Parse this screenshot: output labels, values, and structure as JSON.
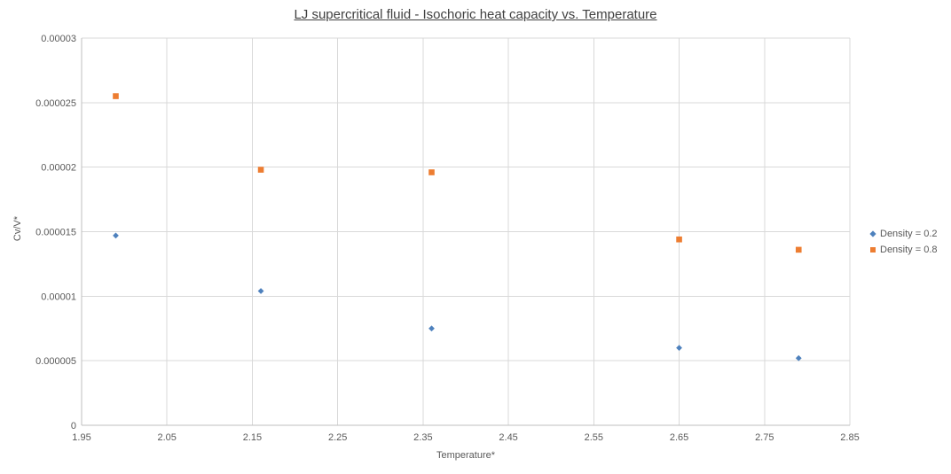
{
  "colors": {
    "gridline": "#d9d9d9",
    "axis_line": "#bfbfbf",
    "axis_text": "#595959",
    "title_text": "#404040"
  },
  "chart_data": {
    "type": "scatter",
    "title": "LJ supercritical fluid - Isochoric heat capacity vs. Temperature",
    "xlabel": "Temperature*",
    "ylabel": "Cv/V*",
    "xlim": [
      1.95,
      2.85
    ],
    "ylim": [
      0,
      3e-05
    ],
    "grid": true,
    "legend_position": "right",
    "x_ticks": [
      1.95,
      2.05,
      2.15,
      2.25,
      2.35,
      2.45,
      2.55,
      2.65,
      2.75,
      2.85
    ],
    "x_tick_labels": [
      "1.95",
      "2.05",
      "2.15",
      "2.25",
      "2.35",
      "2.45",
      "2.55",
      "2.65",
      "2.75",
      "2.85"
    ],
    "y_ticks": [
      0,
      5e-06,
      1e-05,
      1.5e-05,
      2e-05,
      2.5e-05,
      3e-05
    ],
    "y_tick_labels": [
      "0",
      "0.000005",
      "0.00001",
      "0.000015",
      "0.00002",
      "0.000025",
      "0.00003"
    ],
    "series": [
      {
        "name": "Density = 0.2",
        "marker": "diamond",
        "color": "#4e81bd",
        "points": [
          [
            1.99,
            1.47e-05
          ],
          [
            2.16,
            1.04e-05
          ],
          [
            2.36,
            7.5e-06
          ],
          [
            2.65,
            6e-06
          ],
          [
            2.79,
            5.2e-06
          ]
        ]
      },
      {
        "name": "Density = 0.8",
        "marker": "square",
        "color": "#ed7d31",
        "points": [
          [
            1.99,
            2.55e-05
          ],
          [
            2.16,
            1.98e-05
          ],
          [
            2.36,
            1.96e-05
          ],
          [
            2.65,
            1.44e-05
          ],
          [
            2.79,
            1.36e-05
          ]
        ]
      }
    ]
  }
}
